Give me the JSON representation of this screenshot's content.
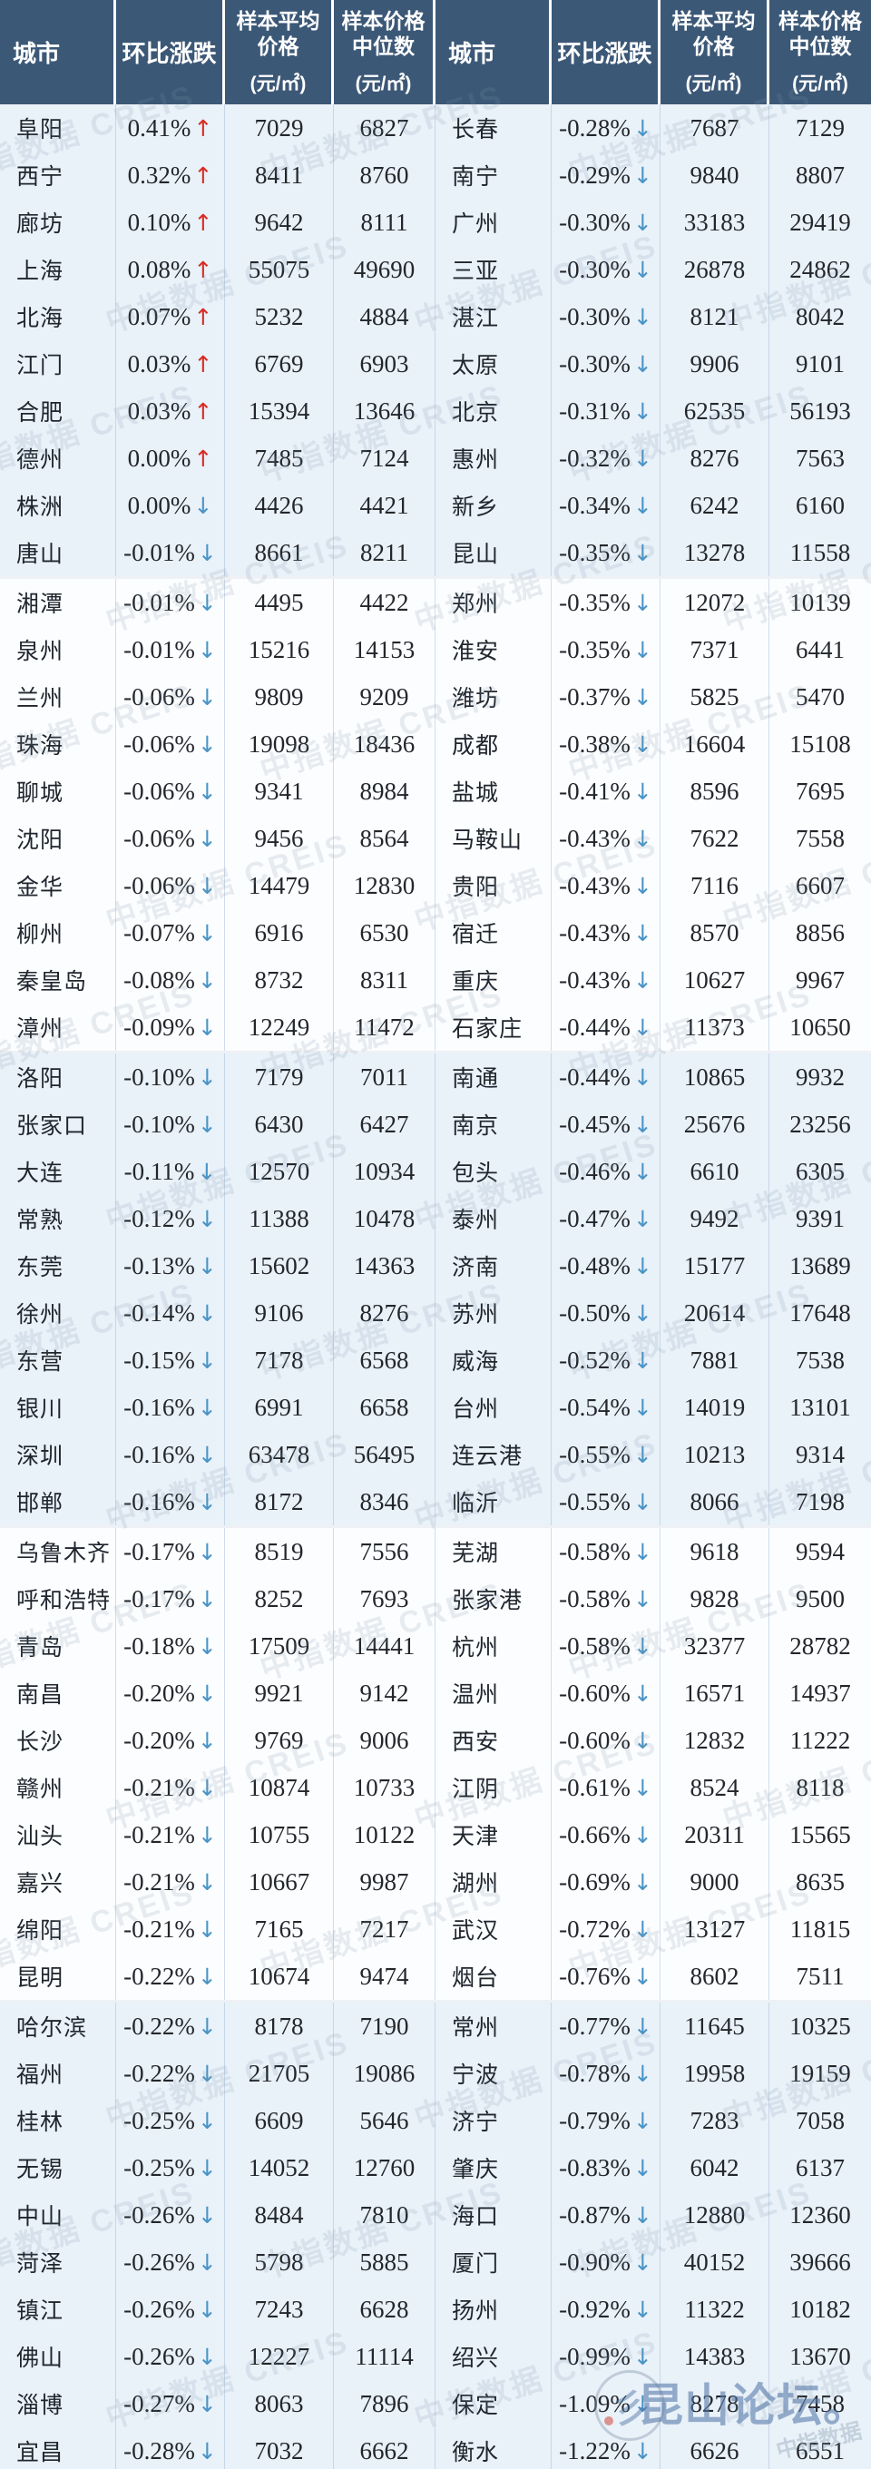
{
  "header": {
    "city": "城市",
    "change": "环比涨跌",
    "avg_line1": "样本平均",
    "avg_line2": "价格",
    "median_line1": "样本价格",
    "median_line2": "中位数",
    "unit": "(元/㎡)"
  },
  "symbols": {
    "up_arrow": "↑",
    "down_arrow": "↓"
  },
  "colors": {
    "header_bg": "#3c5877",
    "tint_block_bg": "#e9f1f9",
    "plain_block_bg": "#fcfdff",
    "up_arrow": "#d92b21",
    "down_arrow": "#4a94c6",
    "column_line": "#a5bed7"
  },
  "watermarks": {
    "tile_text": "中指数据 CREIS",
    "forum_text": "昆山论坛。",
    "forum_sub_text": "中指数据"
  },
  "left_rows": [
    {
      "city": "阜阳",
      "pct": "0.41%",
      "dir": "up",
      "avg": "7029",
      "median": "6827"
    },
    {
      "city": "西宁",
      "pct": "0.32%",
      "dir": "up",
      "avg": "8411",
      "median": "8760"
    },
    {
      "city": "廊坊",
      "pct": "0.10%",
      "dir": "up",
      "avg": "9642",
      "median": "8111"
    },
    {
      "city": "上海",
      "pct": "0.08%",
      "dir": "up",
      "avg": "55075",
      "median": "49690"
    },
    {
      "city": "北海",
      "pct": "0.07%",
      "dir": "up",
      "avg": "5232",
      "median": "4884"
    },
    {
      "city": "江门",
      "pct": "0.03%",
      "dir": "up",
      "avg": "6769",
      "median": "6903"
    },
    {
      "city": "合肥",
      "pct": "0.03%",
      "dir": "up",
      "avg": "15394",
      "median": "13646"
    },
    {
      "city": "德州",
      "pct": "0.00%",
      "dir": "up",
      "avg": "7485",
      "median": "7124"
    },
    {
      "city": "株洲",
      "pct": "0.00%",
      "dir": "down",
      "avg": "4426",
      "median": "4421"
    },
    {
      "city": "唐山",
      "pct": "-0.01%",
      "dir": "down",
      "avg": "8661",
      "median": "8211"
    },
    {
      "city": "湘潭",
      "pct": "-0.01%",
      "dir": "down",
      "avg": "4495",
      "median": "4422"
    },
    {
      "city": "泉州",
      "pct": "-0.01%",
      "dir": "down",
      "avg": "15216",
      "median": "14153"
    },
    {
      "city": "兰州",
      "pct": "-0.06%",
      "dir": "down",
      "avg": "9809",
      "median": "9209"
    },
    {
      "city": "珠海",
      "pct": "-0.06%",
      "dir": "down",
      "avg": "19098",
      "median": "18436"
    },
    {
      "city": "聊城",
      "pct": "-0.06%",
      "dir": "down",
      "avg": "9341",
      "median": "8984"
    },
    {
      "city": "沈阳",
      "pct": "-0.06%",
      "dir": "down",
      "avg": "9456",
      "median": "8564"
    },
    {
      "city": "金华",
      "pct": "-0.06%",
      "dir": "down",
      "avg": "14479",
      "median": "12830"
    },
    {
      "city": "柳州",
      "pct": "-0.07%",
      "dir": "down",
      "avg": "6916",
      "median": "6530"
    },
    {
      "city": "秦皇岛",
      "pct": "-0.08%",
      "dir": "down",
      "avg": "8732",
      "median": "8311"
    },
    {
      "city": "漳州",
      "pct": "-0.09%",
      "dir": "down",
      "avg": "12249",
      "median": "11472"
    },
    {
      "city": "洛阳",
      "pct": "-0.10%",
      "dir": "down",
      "avg": "7179",
      "median": "7011"
    },
    {
      "city": "张家口",
      "pct": "-0.10%",
      "dir": "down",
      "avg": "6430",
      "median": "6427"
    },
    {
      "city": "大连",
      "pct": "-0.11%",
      "dir": "down",
      "avg": "12570",
      "median": "10934"
    },
    {
      "city": "常熟",
      "pct": "-0.12%",
      "dir": "down",
      "avg": "11388",
      "median": "10478"
    },
    {
      "city": "东莞",
      "pct": "-0.13%",
      "dir": "down",
      "avg": "15602",
      "median": "14363"
    },
    {
      "city": "徐州",
      "pct": "-0.14%",
      "dir": "down",
      "avg": "9106",
      "median": "8276"
    },
    {
      "city": "东营",
      "pct": "-0.15%",
      "dir": "down",
      "avg": "7178",
      "median": "6568"
    },
    {
      "city": "银川",
      "pct": "-0.16%",
      "dir": "down",
      "avg": "6991",
      "median": "6658"
    },
    {
      "city": "深圳",
      "pct": "-0.16%",
      "dir": "down",
      "avg": "63478",
      "median": "56495"
    },
    {
      "city": "邯郸",
      "pct": "-0.16%",
      "dir": "down",
      "avg": "8172",
      "median": "8346"
    },
    {
      "city": "乌鲁木齐",
      "pct": "-0.17%",
      "dir": "down",
      "avg": "8519",
      "median": "7556"
    },
    {
      "city": "呼和浩特",
      "pct": "-0.17%",
      "dir": "down",
      "avg": "8252",
      "median": "7693"
    },
    {
      "city": "青岛",
      "pct": "-0.18%",
      "dir": "down",
      "avg": "17509",
      "median": "14441"
    },
    {
      "city": "南昌",
      "pct": "-0.20%",
      "dir": "down",
      "avg": "9921",
      "median": "9142"
    },
    {
      "city": "长沙",
      "pct": "-0.20%",
      "dir": "down",
      "avg": "9769",
      "median": "9006"
    },
    {
      "city": "赣州",
      "pct": "-0.21%",
      "dir": "down",
      "avg": "10874",
      "median": "10733"
    },
    {
      "city": "汕头",
      "pct": "-0.21%",
      "dir": "down",
      "avg": "10755",
      "median": "10122"
    },
    {
      "city": "嘉兴",
      "pct": "-0.21%",
      "dir": "down",
      "avg": "10667",
      "median": "9987"
    },
    {
      "city": "绵阳",
      "pct": "-0.21%",
      "dir": "down",
      "avg": "7165",
      "median": "7217"
    },
    {
      "city": "昆明",
      "pct": "-0.22%",
      "dir": "down",
      "avg": "10674",
      "median": "9474"
    },
    {
      "city": "哈尔滨",
      "pct": "-0.22%",
      "dir": "down",
      "avg": "8178",
      "median": "7190"
    },
    {
      "city": "福州",
      "pct": "-0.22%",
      "dir": "down",
      "avg": "21705",
      "median": "19086"
    },
    {
      "city": "桂林",
      "pct": "-0.25%",
      "dir": "down",
      "avg": "6609",
      "median": "5646"
    },
    {
      "city": "无锡",
      "pct": "-0.25%",
      "dir": "down",
      "avg": "14052",
      "median": "12760"
    },
    {
      "city": "中山",
      "pct": "-0.26%",
      "dir": "down",
      "avg": "8484",
      "median": "7810"
    },
    {
      "city": "菏泽",
      "pct": "-0.26%",
      "dir": "down",
      "avg": "5798",
      "median": "5885"
    },
    {
      "city": "镇江",
      "pct": "-0.26%",
      "dir": "down",
      "avg": "7243",
      "median": "6628"
    },
    {
      "city": "佛山",
      "pct": "-0.26%",
      "dir": "down",
      "avg": "12227",
      "median": "11114"
    },
    {
      "city": "淄博",
      "pct": "-0.27%",
      "dir": "down",
      "avg": "8063",
      "median": "7896"
    },
    {
      "city": "宜昌",
      "pct": "-0.28%",
      "dir": "down",
      "avg": "7032",
      "median": "6662"
    }
  ],
  "right_rows": [
    {
      "city": "长春",
      "pct": "-0.28%",
      "dir": "down",
      "avg": "7687",
      "median": "7129"
    },
    {
      "city": "南宁",
      "pct": "-0.29%",
      "dir": "down",
      "avg": "9840",
      "median": "8807"
    },
    {
      "city": "广州",
      "pct": "-0.30%",
      "dir": "down",
      "avg": "33183",
      "median": "29419"
    },
    {
      "city": "三亚",
      "pct": "-0.30%",
      "dir": "down",
      "avg": "26878",
      "median": "24862"
    },
    {
      "city": "湛江",
      "pct": "-0.30%",
      "dir": "down",
      "avg": "8121",
      "median": "8042"
    },
    {
      "city": "太原",
      "pct": "-0.30%",
      "dir": "down",
      "avg": "9906",
      "median": "9101"
    },
    {
      "city": "北京",
      "pct": "-0.31%",
      "dir": "down",
      "avg": "62535",
      "median": "56193"
    },
    {
      "city": "惠州",
      "pct": "-0.32%",
      "dir": "down",
      "avg": "8276",
      "median": "7563"
    },
    {
      "city": "新乡",
      "pct": "-0.34%",
      "dir": "down",
      "avg": "6242",
      "median": "6160"
    },
    {
      "city": "昆山",
      "pct": "-0.35%",
      "dir": "down",
      "avg": "13278",
      "median": "11558"
    },
    {
      "city": "郑州",
      "pct": "-0.35%",
      "dir": "down",
      "avg": "12072",
      "median": "10139"
    },
    {
      "city": "淮安",
      "pct": "-0.35%",
      "dir": "down",
      "avg": "7371",
      "median": "6441"
    },
    {
      "city": "潍坊",
      "pct": "-0.37%",
      "dir": "down",
      "avg": "5825",
      "median": "5470"
    },
    {
      "city": "成都",
      "pct": "-0.38%",
      "dir": "down",
      "avg": "16604",
      "median": "15108"
    },
    {
      "city": "盐城",
      "pct": "-0.41%",
      "dir": "down",
      "avg": "8596",
      "median": "7695"
    },
    {
      "city": "马鞍山",
      "pct": "-0.43%",
      "dir": "down",
      "avg": "7622",
      "median": "7558"
    },
    {
      "city": "贵阳",
      "pct": "-0.43%",
      "dir": "down",
      "avg": "7116",
      "median": "6607"
    },
    {
      "city": "宿迁",
      "pct": "-0.43%",
      "dir": "down",
      "avg": "8570",
      "median": "8856"
    },
    {
      "city": "重庆",
      "pct": "-0.43%",
      "dir": "down",
      "avg": "10627",
      "median": "9967"
    },
    {
      "city": "石家庄",
      "pct": "-0.44%",
      "dir": "down",
      "avg": "11373",
      "median": "10650"
    },
    {
      "city": "南通",
      "pct": "-0.44%",
      "dir": "down",
      "avg": "10865",
      "median": "9932"
    },
    {
      "city": "南京",
      "pct": "-0.45%",
      "dir": "down",
      "avg": "25676",
      "median": "23256"
    },
    {
      "city": "包头",
      "pct": "-0.46%",
      "dir": "down",
      "avg": "6610",
      "median": "6305"
    },
    {
      "city": "泰州",
      "pct": "-0.47%",
      "dir": "down",
      "avg": "9492",
      "median": "9391"
    },
    {
      "city": "济南",
      "pct": "-0.48%",
      "dir": "down",
      "avg": "15177",
      "median": "13689"
    },
    {
      "city": "苏州",
      "pct": "-0.50%",
      "dir": "down",
      "avg": "20614",
      "median": "17648"
    },
    {
      "city": "威海",
      "pct": "-0.52%",
      "dir": "down",
      "avg": "7881",
      "median": "7538"
    },
    {
      "city": "台州",
      "pct": "-0.54%",
      "dir": "down",
      "avg": "14019",
      "median": "13101"
    },
    {
      "city": "连云港",
      "pct": "-0.55%",
      "dir": "down",
      "avg": "10213",
      "median": "9314"
    },
    {
      "city": "临沂",
      "pct": "-0.55%",
      "dir": "down",
      "avg": "8066",
      "median": "7198"
    },
    {
      "city": "芜湖",
      "pct": "-0.58%",
      "dir": "down",
      "avg": "9618",
      "median": "9594"
    },
    {
      "city": "张家港",
      "pct": "-0.58%",
      "dir": "down",
      "avg": "9828",
      "median": "9500"
    },
    {
      "city": "杭州",
      "pct": "-0.58%",
      "dir": "down",
      "avg": "32377",
      "median": "28782"
    },
    {
      "city": "温州",
      "pct": "-0.60%",
      "dir": "down",
      "avg": "16571",
      "median": "14937"
    },
    {
      "city": "西安",
      "pct": "-0.60%",
      "dir": "down",
      "avg": "12832",
      "median": "11222"
    },
    {
      "city": "江阴",
      "pct": "-0.61%",
      "dir": "down",
      "avg": "8524",
      "median": "8118"
    },
    {
      "city": "天津",
      "pct": "-0.66%",
      "dir": "down",
      "avg": "20311",
      "median": "15565"
    },
    {
      "city": "湖州",
      "pct": "-0.69%",
      "dir": "down",
      "avg": "9000",
      "median": "8635"
    },
    {
      "city": "武汉",
      "pct": "-0.72%",
      "dir": "down",
      "avg": "13127",
      "median": "11815"
    },
    {
      "city": "烟台",
      "pct": "-0.76%",
      "dir": "down",
      "avg": "8602",
      "median": "7511"
    },
    {
      "city": "常州",
      "pct": "-0.77%",
      "dir": "down",
      "avg": "11645",
      "median": "10325"
    },
    {
      "city": "宁波",
      "pct": "-0.78%",
      "dir": "down",
      "avg": "19958",
      "median": "19159"
    },
    {
      "city": "济宁",
      "pct": "-0.79%",
      "dir": "down",
      "avg": "7283",
      "median": "7058"
    },
    {
      "city": "肇庆",
      "pct": "-0.83%",
      "dir": "down",
      "avg": "6042",
      "median": "6137"
    },
    {
      "city": "海口",
      "pct": "-0.87%",
      "dir": "down",
      "avg": "12880",
      "median": "12360"
    },
    {
      "city": "厦门",
      "pct": "-0.90%",
      "dir": "down",
      "avg": "40152",
      "median": "39666"
    },
    {
      "city": "扬州",
      "pct": "-0.92%",
      "dir": "down",
      "avg": "11322",
      "median": "10182"
    },
    {
      "city": "绍兴",
      "pct": "-0.99%",
      "dir": "down",
      "avg": "14383",
      "median": "13670"
    },
    {
      "city": "保定",
      "pct": "-1.09%",
      "dir": "down",
      "avg": "8278",
      "median": "7458"
    },
    {
      "city": "衡水",
      "pct": "-1.22%",
      "dir": "down",
      "avg": "6626",
      "median": "6551"
    }
  ]
}
